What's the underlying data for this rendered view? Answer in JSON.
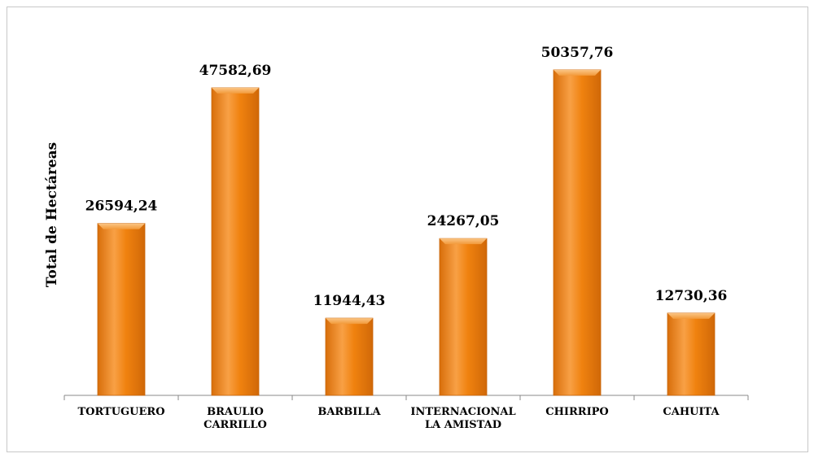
{
  "chart_data": {
    "type": "bar",
    "title": "",
    "xlabel": "",
    "ylabel": "Total de Hectáreas",
    "categories": [
      [
        "TORTUGUERO"
      ],
      [
        "BRAULIO",
        "CARRILLO"
      ],
      [
        "BARBILLA"
      ],
      [
        "INTERNACIONAL",
        "LA AMISTAD"
      ],
      [
        "CHIRRIPO"
      ],
      [
        "CAHUITA"
      ]
    ],
    "values": [
      26594.24,
      47582.69,
      11944.43,
      24267.05,
      50357.76,
      12730.36
    ],
    "value_labels": [
      "26594,24",
      "47582,69",
      "11944,43",
      "24267,05",
      "50357,76",
      "12730,36"
    ],
    "ylim": [
      0,
      55000
    ],
    "grid": false,
    "legend": "none",
    "bar_color": "#F0820F",
    "bar_highlight": "#F8B266",
    "bar_edge": "#C8650A"
  }
}
